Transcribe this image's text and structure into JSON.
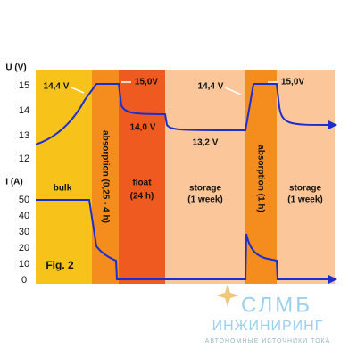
{
  "axes": {
    "voltage_label": "U (V)",
    "voltage_ticks": [
      "15",
      "14",
      "13",
      "12"
    ],
    "current_label": "I (A)",
    "current_ticks": [
      "50",
      "40",
      "30",
      "20",
      "10",
      "0"
    ]
  },
  "stages": {
    "bulk": "bulk",
    "absorption_1": "absorption (0,25 - 4 h)",
    "float_1": "float",
    "float_2": "(24 h)",
    "storage_1a": "storage",
    "storage_1b": "(1 week)",
    "absorption_2": "absorption (1 h)",
    "storage_2a": "storage",
    "storage_2b": "(1 week)"
  },
  "annotations": {
    "v1": "14,4 V",
    "v2": "15,0V",
    "v3": "14,0 V",
    "v4": "13,2 V",
    "v5": "14,4 V",
    "v6": "15,0V",
    "fig": "Fig. 2"
  },
  "logo": {
    "name": "СЛМБ",
    "subtitle": "ИНЖИНИРИНГ",
    "tagline": "АВТОНОМНЫЕ ИСТОЧНИКИ ТОКА"
  }
}
